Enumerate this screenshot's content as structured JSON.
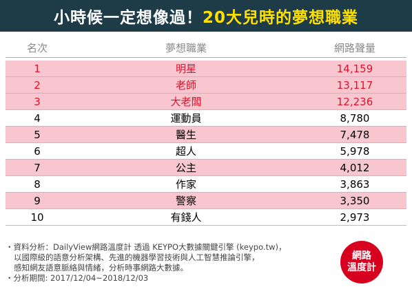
{
  "header": {
    "title": "小時候一定想像過！",
    "highlight": "20大兒時的夢想職業"
  },
  "table": {
    "columns": [
      "名次",
      "夢想職業",
      "網路聲量"
    ],
    "rows": [
      [
        "1",
        "明星",
        "14,159"
      ],
      [
        "2",
        "老師",
        "13,117"
      ],
      [
        "3",
        "大老闆",
        "12,236"
      ],
      [
        "4",
        "運動員",
        "8,780"
      ],
      [
        "5",
        "醫生",
        "7,478"
      ],
      [
        "6",
        "超人",
        "5,978"
      ],
      [
        "7",
        "公主",
        "4,012"
      ],
      [
        "8",
        "作家",
        "3,863"
      ],
      [
        "9",
        "警察",
        "3,350"
      ],
      [
        "10",
        "有錢人",
        "2,973"
      ]
    ]
  },
  "notes": [
    "・資料分析：DailyView網路溫度計 透過 KEYPO大數據關鍵引擎 (keypo.tw)，",
    "以國際級的語意分析架構、先進的機器學習技術與人工智慧推論引擎，",
    "感知網友語意脈絡與情緒，分析時事網路大數據。",
    "・分析期間: 2017/12/04~2018/12/03"
  ],
  "logo": [
    "網路",
    "溫度計"
  ]
}
